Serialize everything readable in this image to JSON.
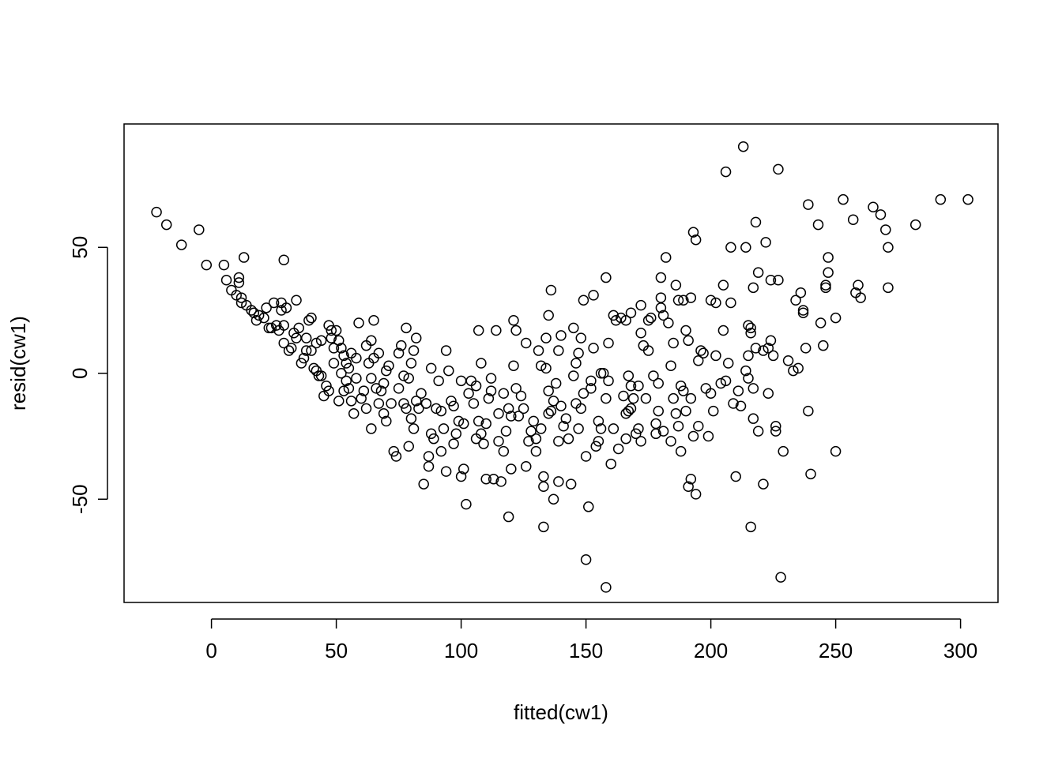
{
  "chart_data": {
    "type": "scatter",
    "title": "",
    "xlabel": "fitted(cw1)",
    "ylabel": "resid(cw1)",
    "xlim": [
      -35,
      315
    ],
    "ylim": [
      -91,
      99
    ],
    "xticks": [
      0,
      50,
      100,
      150,
      200,
      250,
      300
    ],
    "yticks": [
      -50,
      0,
      50
    ],
    "xtick_labels": [
      "0",
      "50",
      "100",
      "150",
      "200",
      "250",
      "300"
    ],
    "ytick_labels": [
      "-50",
      "0",
      "50"
    ],
    "grid": false,
    "legend": "none",
    "marker": "open-circle",
    "point_color": "#000000",
    "points": [
      [
        -22,
        64
      ],
      [
        -18,
        59
      ],
      [
        -12,
        51
      ],
      [
        -5,
        57
      ],
      [
        -2,
        43
      ],
      [
        5,
        43
      ],
      [
        6,
        37
      ],
      [
        8,
        33
      ],
      [
        10,
        31
      ],
      [
        11,
        36
      ],
      [
        11,
        38
      ],
      [
        12,
        30
      ],
      [
        12,
        28
      ],
      [
        13,
        46
      ],
      [
        14,
        27
      ],
      [
        16,
        25
      ],
      [
        17,
        24
      ],
      [
        18,
        21
      ],
      [
        19,
        23
      ],
      [
        21,
        22
      ],
      [
        22,
        26
      ],
      [
        23,
        18
      ],
      [
        24,
        18
      ],
      [
        25,
        28
      ],
      [
        26,
        19
      ],
      [
        27,
        17
      ],
      [
        28,
        28
      ],
      [
        28,
        25
      ],
      [
        29,
        19
      ],
      [
        29,
        12
      ],
      [
        29,
        45
      ],
      [
        30,
        26
      ],
      [
        31,
        9
      ],
      [
        32,
        10
      ],
      [
        33,
        16
      ],
      [
        34,
        14
      ],
      [
        34,
        29
      ],
      [
        35,
        18
      ],
      [
        36,
        4
      ],
      [
        37,
        6
      ],
      [
        38,
        9
      ],
      [
        38,
        14
      ],
      [
        39,
        21
      ],
      [
        40,
        22
      ],
      [
        40,
        9
      ],
      [
        41,
        2
      ],
      [
        42,
        1
      ],
      [
        42,
        12
      ],
      [
        43,
        -1
      ],
      [
        44,
        -1
      ],
      [
        44,
        13
      ],
      [
        45,
        -9
      ],
      [
        46,
        -5
      ],
      [
        47,
        -7
      ],
      [
        47,
        19
      ],
      [
        48,
        17
      ],
      [
        48,
        14
      ],
      [
        49,
        10
      ],
      [
        49,
        4
      ],
      [
        50,
        17
      ],
      [
        51,
        -11
      ],
      [
        51,
        13
      ],
      [
        52,
        0
      ],
      [
        52,
        10
      ],
      [
        53,
        7
      ],
      [
        53,
        -7
      ],
      [
        54,
        4
      ],
      [
        54,
        -3
      ],
      [
        55,
        2
      ],
      [
        55,
        -6
      ],
      [
        56,
        -11
      ],
      [
        56,
        8
      ],
      [
        57,
        -16
      ],
      [
        58,
        6
      ],
      [
        58,
        -2
      ],
      [
        59,
        20
      ],
      [
        60,
        -10
      ],
      [
        61,
        -7
      ],
      [
        62,
        11
      ],
      [
        62,
        -14
      ],
      [
        63,
        4
      ],
      [
        64,
        -22
      ],
      [
        64,
        -2
      ],
      [
        64,
        13
      ],
      [
        65,
        21
      ],
      [
        65,
        6
      ],
      [
        66,
        -6
      ],
      [
        67,
        -12
      ],
      [
        67,
        8
      ],
      [
        68,
        -7
      ],
      [
        69,
        -16
      ],
      [
        69,
        -4
      ],
      [
        70,
        1
      ],
      [
        70,
        -19
      ],
      [
        71,
        3
      ],
      [
        72,
        -12
      ],
      [
        73,
        -31
      ],
      [
        74,
        -33
      ],
      [
        75,
        8
      ],
      [
        75,
        -6
      ],
      [
        76,
        11
      ],
      [
        77,
        -1
      ],
      [
        77,
        -12
      ],
      [
        78,
        18
      ],
      [
        78,
        -14
      ],
      [
        79,
        -29
      ],
      [
        79,
        -2
      ],
      [
        80,
        4
      ],
      [
        80,
        -18
      ],
      [
        81,
        -22
      ],
      [
        81,
        9
      ],
      [
        82,
        -11
      ],
      [
        82,
        14
      ],
      [
        83,
        -14
      ],
      [
        84,
        -8
      ],
      [
        85,
        -44
      ],
      [
        86,
        -12
      ],
      [
        86,
        -12
      ],
      [
        87,
        -37
      ],
      [
        87,
        -33
      ],
      [
        88,
        -24
      ],
      [
        88,
        2
      ],
      [
        89,
        -26
      ],
      [
        90,
        -14
      ],
      [
        91,
        -3
      ],
      [
        92,
        -31
      ],
      [
        92,
        -15
      ],
      [
        93,
        -22
      ],
      [
        94,
        9
      ],
      [
        94,
        -39
      ],
      [
        95,
        1
      ],
      [
        96,
        -11
      ],
      [
        97,
        -28
      ],
      [
        97,
        -13
      ],
      [
        98,
        -24
      ],
      [
        99,
        -19
      ],
      [
        100,
        -3
      ],
      [
        100,
        -41
      ],
      [
        101,
        -38
      ],
      [
        101,
        -20
      ],
      [
        102,
        -52
      ],
      [
        103,
        -8
      ],
      [
        104,
        -3
      ],
      [
        105,
        -12
      ],
      [
        106,
        -26
      ],
      [
        106,
        -5
      ],
      [
        107,
        17
      ],
      [
        107,
        -19
      ],
      [
        108,
        -24
      ],
      [
        108,
        4
      ],
      [
        109,
        -28
      ],
      [
        110,
        -20
      ],
      [
        110,
        -42
      ],
      [
        111,
        -10
      ],
      [
        112,
        -7
      ],
      [
        112,
        -2
      ],
      [
        113,
        -42
      ],
      [
        114,
        17
      ],
      [
        115,
        -27
      ],
      [
        115,
        -16
      ],
      [
        116,
        -43
      ],
      [
        117,
        -8
      ],
      [
        117,
        -31
      ],
      [
        118,
        -23
      ],
      [
        119,
        -14
      ],
      [
        119,
        -57
      ],
      [
        120,
        -17
      ],
      [
        120,
        -38
      ],
      [
        121,
        21
      ],
      [
        121,
        3
      ],
      [
        122,
        -6
      ],
      [
        122,
        17
      ],
      [
        123,
        -17
      ],
      [
        124,
        -9
      ],
      [
        125,
        -14
      ],
      [
        126,
        12
      ],
      [
        126,
        -37
      ],
      [
        127,
        -27
      ],
      [
        128,
        -23
      ],
      [
        129,
        -19
      ],
      [
        130,
        -26
      ],
      [
        130,
        -31
      ],
      [
        131,
        9
      ],
      [
        132,
        3
      ],
      [
        132,
        -22
      ],
      [
        133,
        -45
      ],
      [
        133,
        -41
      ],
      [
        133,
        -61
      ],
      [
        134,
        2
      ],
      [
        134,
        14
      ],
      [
        135,
        -16
      ],
      [
        135,
        -7
      ],
      [
        135,
        23
      ],
      [
        136,
        33
      ],
      [
        136,
        -15
      ],
      [
        137,
        -50
      ],
      [
        137,
        -11
      ],
      [
        138,
        -4
      ],
      [
        139,
        -27
      ],
      [
        139,
        -43
      ],
      [
        139,
        9
      ],
      [
        140,
        15
      ],
      [
        140,
        -13
      ],
      [
        141,
        -21
      ],
      [
        142,
        -18
      ],
      [
        143,
        -26
      ],
      [
        144,
        -44
      ],
      [
        145,
        -1
      ],
      [
        145,
        18
      ],
      [
        146,
        4
      ],
      [
        146,
        -12
      ],
      [
        147,
        -22
      ],
      [
        147,
        8
      ],
      [
        148,
        14
      ],
      [
        148,
        -14
      ],
      [
        149,
        -8
      ],
      [
        149,
        29
      ],
      [
        150,
        -74
      ],
      [
        150,
        -33
      ],
      [
        151,
        -53
      ],
      [
        152,
        -6
      ],
      [
        152,
        -3
      ],
      [
        153,
        10
      ],
      [
        153,
        31
      ],
      [
        154,
        -29
      ],
      [
        155,
        -27
      ],
      [
        155,
        -19
      ],
      [
        156,
        -22
      ],
      [
        156,
        0
      ],
      [
        157,
        0
      ],
      [
        158,
        -10
      ],
      [
        158,
        -85
      ],
      [
        158,
        38
      ],
      [
        159,
        -3
      ],
      [
        159,
        12
      ],
      [
        160,
        -36
      ],
      [
        161,
        -22
      ],
      [
        161,
        23
      ],
      [
        162,
        21
      ],
      [
        163,
        -30
      ],
      [
        164,
        22
      ],
      [
        165,
        -9
      ],
      [
        166,
        -26
      ],
      [
        166,
        -16
      ],
      [
        166,
        21
      ],
      [
        167,
        -1
      ],
      [
        167,
        -15
      ],
      [
        168,
        -5
      ],
      [
        168,
        -14
      ],
      [
        168,
        24
      ],
      [
        169,
        -10
      ],
      [
        170,
        -24
      ],
      [
        171,
        -22
      ],
      [
        171,
        -5
      ],
      [
        172,
        27
      ],
      [
        172,
        -27
      ],
      [
        172,
        16
      ],
      [
        173,
        11
      ],
      [
        174,
        -10
      ],
      [
        175,
        21
      ],
      [
        175,
        9
      ],
      [
        176,
        22
      ],
      [
        177,
        -1
      ],
      [
        178,
        -24
      ],
      [
        178,
        -20
      ],
      [
        179,
        -4
      ],
      [
        179,
        -15
      ],
      [
        180,
        30
      ],
      [
        180,
        26
      ],
      [
        180,
        38
      ],
      [
        181,
        -23
      ],
      [
        181,
        23
      ],
      [
        182,
        46
      ],
      [
        183,
        20
      ],
      [
        184,
        -27
      ],
      [
        184,
        3
      ],
      [
        185,
        -10
      ],
      [
        185,
        12
      ],
      [
        186,
        35
      ],
      [
        186,
        -16
      ],
      [
        187,
        -21
      ],
      [
        187,
        29
      ],
      [
        188,
        -31
      ],
      [
        188,
        -5
      ],
      [
        189,
        29
      ],
      [
        189,
        -7
      ],
      [
        190,
        -15
      ],
      [
        190,
        17
      ],
      [
        191,
        -45
      ],
      [
        191,
        13
      ],
      [
        192,
        -42
      ],
      [
        192,
        -10
      ],
      [
        192,
        30
      ],
      [
        193,
        -25
      ],
      [
        193,
        56
      ],
      [
        194,
        -48
      ],
      [
        194,
        53
      ],
      [
        195,
        -21
      ],
      [
        195,
        5
      ],
      [
        196,
        9
      ],
      [
        197,
        8
      ],
      [
        198,
        -6
      ],
      [
        199,
        -25
      ],
      [
        200,
        -8
      ],
      [
        200,
        29
      ],
      [
        201,
        -15
      ],
      [
        202,
        7
      ],
      [
        202,
        28
      ],
      [
        204,
        -4
      ],
      [
        205,
        17
      ],
      [
        205,
        35
      ],
      [
        206,
        -3
      ],
      [
        206,
        80
      ],
      [
        207,
        4
      ],
      [
        208,
        50
      ],
      [
        208,
        28
      ],
      [
        209,
        -12
      ],
      [
        210,
        -41
      ],
      [
        211,
        -7
      ],
      [
        212,
        -13
      ],
      [
        213,
        90
      ],
      [
        214,
        1
      ],
      [
        214,
        50
      ],
      [
        215,
        -2
      ],
      [
        215,
        19
      ],
      [
        215,
        7
      ],
      [
        216,
        16
      ],
      [
        216,
        -61
      ],
      [
        216,
        18
      ],
      [
        217,
        -6
      ],
      [
        217,
        34
      ],
      [
        217,
        -18
      ],
      [
        218,
        60
      ],
      [
        218,
        10
      ],
      [
        219,
        -23
      ],
      [
        219,
        40
      ],
      [
        221,
        -44
      ],
      [
        221,
        9
      ],
      [
        222,
        52
      ],
      [
        223,
        -8
      ],
      [
        223,
        10
      ],
      [
        224,
        13
      ],
      [
        224,
        37
      ],
      [
        225,
        7
      ],
      [
        226,
        -21
      ],
      [
        226,
        -23
      ],
      [
        227,
        81
      ],
      [
        227,
        37
      ],
      [
        228,
        -81
      ],
      [
        229,
        -31
      ],
      [
        231,
        5
      ],
      [
        233,
        1
      ],
      [
        234,
        29
      ],
      [
        235,
        2
      ],
      [
        236,
        32
      ],
      [
        237,
        24
      ],
      [
        237,
        25
      ],
      [
        238,
        10
      ],
      [
        239,
        -15
      ],
      [
        239,
        67
      ],
      [
        240,
        -40
      ],
      [
        243,
        59
      ],
      [
        244,
        20
      ],
      [
        245,
        11
      ],
      [
        246,
        35
      ],
      [
        246,
        34
      ],
      [
        247,
        40
      ],
      [
        247,
        46
      ],
      [
        250,
        -31
      ],
      [
        250,
        22
      ],
      [
        253,
        69
      ],
      [
        257,
        61
      ],
      [
        258,
        32
      ],
      [
        259,
        35
      ],
      [
        260,
        30
      ],
      [
        265,
        66
      ],
      [
        268,
        63
      ],
      [
        270,
        57
      ],
      [
        271,
        50
      ],
      [
        271,
        34
      ],
      [
        282,
        59
      ],
      [
        292,
        69
      ],
      [
        303,
        69
      ]
    ]
  }
}
